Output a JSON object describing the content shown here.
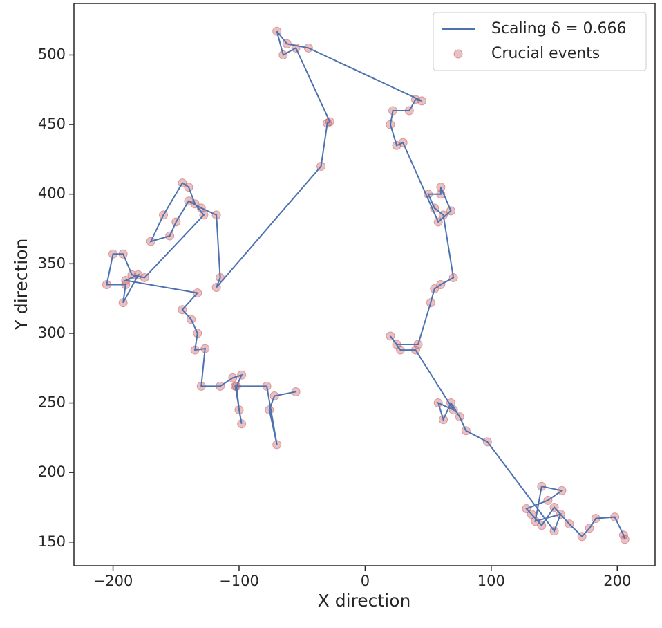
{
  "chart_data": {
    "type": "line",
    "xlabel": "X direction",
    "ylabel": "Y direction",
    "xlim": [
      -231,
      230
    ],
    "ylim": [
      133,
      537
    ],
    "xticks": [
      {
        "value": -200,
        "label": "−200"
      },
      {
        "value": -100,
        "label": "−100"
      },
      0,
      100,
      200
    ],
    "yticks": [
      150,
      200,
      250,
      300,
      350,
      400,
      450,
      500
    ],
    "legend": "upper right",
    "series": [
      {
        "name": "Scaling δ = 0.666",
        "type": "line",
        "color": "#4c72b0",
        "x": [
          206,
          205,
          198,
          183,
          178,
          172,
          162,
          150,
          140,
          132,
          128,
          145,
          156,
          140,
          135,
          155,
          150,
          97,
          80,
          75,
          68,
          62,
          58,
          70,
          40,
          28,
          20,
          25,
          42,
          52,
          55,
          60,
          70,
          62,
          55,
          50,
          60,
          60,
          68,
          58,
          30,
          25,
          20,
          22,
          35,
          40,
          45,
          -45,
          -62,
          -70,
          -65,
          -55,
          -28,
          -30,
          -35,
          -118,
          -115,
          -118,
          -130,
          -140,
          -150,
          -155,
          -170,
          -160,
          -145,
          -140,
          -135,
          -128,
          -175,
          -185,
          -192,
          -200,
          -205,
          -190,
          -192,
          -180,
          -190,
          -133,
          -145,
          -138,
          -133,
          -135,
          -127,
          -130,
          -115,
          -105,
          -98,
          -102,
          -100,
          -98,
          -103,
          -78,
          -70,
          -76,
          -72,
          -55
        ],
        "y": [
          152,
          155,
          168,
          167,
          160,
          154,
          163,
          175,
          162,
          170,
          174,
          180,
          187,
          190,
          165,
          170,
          158,
          222,
          230,
          240,
          250,
          238,
          250,
          245,
          288,
          288,
          298,
          292,
          292,
          322,
          332,
          335,
          340,
          385,
          390,
          400,
          400,
          405,
          388,
          380,
          437,
          435,
          450,
          460,
          460,
          468,
          467,
          505,
          508,
          517,
          500,
          505,
          452,
          451,
          420,
          333,
          340,
          385,
          390,
          395,
          380,
          370,
          366,
          385,
          408,
          405,
          393,
          385,
          340,
          342,
          357,
          357,
          335,
          335,
          322,
          342,
          338,
          329,
          317,
          310,
          300,
          288,
          289,
          262,
          262,
          268,
          270,
          262,
          245,
          235,
          262,
          262,
          220,
          245,
          255,
          258
        ]
      },
      {
        "name": "Crucial events",
        "type": "scatter",
        "color": "#c44e52",
        "x": [
          206,
          205,
          198,
          183,
          178,
          172,
          162,
          150,
          140,
          132,
          128,
          145,
          156,
          140,
          135,
          155,
          150,
          97,
          80,
          75,
          68,
          62,
          58,
          70,
          40,
          28,
          20,
          25,
          42,
          52,
          55,
          60,
          70,
          62,
          55,
          50,
          60,
          60,
          68,
          58,
          30,
          25,
          20,
          22,
          35,
          40,
          45,
          -45,
          -62,
          -70,
          -65,
          -55,
          -28,
          -30,
          -35,
          -118,
          -115,
          -118,
          -130,
          -140,
          -150,
          -155,
          -170,
          -160,
          -145,
          -140,
          -135,
          -128,
          -175,
          -185,
          -192,
          -200,
          -205,
          -190,
          -192,
          -180,
          -190,
          -133,
          -145,
          -138,
          -133,
          -135,
          -127,
          -130,
          -115,
          -105,
          -98,
          -102,
          -100,
          -98,
          -103,
          -78,
          -70,
          -76,
          -72,
          -55
        ],
        "y": [
          152,
          155,
          168,
          167,
          160,
          154,
          163,
          175,
          162,
          170,
          174,
          180,
          187,
          190,
          165,
          170,
          158,
          222,
          230,
          240,
          250,
          238,
          250,
          245,
          288,
          288,
          298,
          292,
          292,
          322,
          332,
          335,
          340,
          385,
          390,
          400,
          400,
          405,
          388,
          380,
          437,
          435,
          450,
          460,
          460,
          468,
          467,
          505,
          508,
          517,
          500,
          505,
          452,
          451,
          420,
          333,
          340,
          385,
          390,
          395,
          380,
          370,
          366,
          385,
          408,
          405,
          393,
          385,
          340,
          342,
          357,
          357,
          335,
          335,
          322,
          342,
          338,
          329,
          317,
          310,
          300,
          288,
          289,
          262,
          262,
          268,
          270,
          262,
          245,
          235,
          262,
          262,
          220,
          245,
          255,
          258
        ]
      }
    ]
  }
}
